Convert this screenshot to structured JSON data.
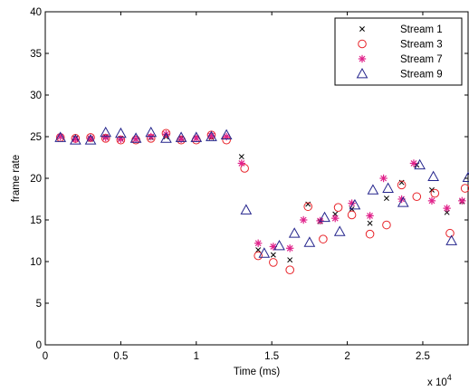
{
  "chart_data": {
    "type": "scatter",
    "title": "",
    "xlabel": "Time (ms)",
    "ylabel": "frame rate",
    "x_multiplier_label": "x 10",
    "x_multiplier_exponent": "4",
    "xlim": [
      0,
      28000
    ],
    "ylim": [
      0,
      40
    ],
    "xticks": [
      0,
      5000,
      10000,
      15000,
      20000,
      25000
    ],
    "xtick_labels": [
      "0",
      "0.5",
      "1",
      "1.5",
      "2",
      "2.5"
    ],
    "yticks": [
      0,
      5,
      10,
      15,
      20,
      25,
      30,
      35,
      40
    ],
    "ytick_labels": [
      "0",
      "5",
      "10",
      "15",
      "20",
      "25",
      "30",
      "35",
      "40"
    ],
    "grid": false,
    "legend_position": "top-right",
    "series": [
      {
        "name": "Stream 1",
        "marker": "x",
        "color": "#000000",
        "points": [
          [
            1000,
            25.0
          ],
          [
            2000,
            24.8
          ],
          [
            3000,
            24.7
          ],
          [
            4000,
            25.0
          ],
          [
            5000,
            24.8
          ],
          [
            6000,
            24.7
          ],
          [
            7000,
            24.9
          ],
          [
            8000,
            25.0
          ],
          [
            9000,
            24.8
          ],
          [
            10000,
            24.8
          ],
          [
            11000,
            24.9
          ],
          [
            12000,
            25.0
          ],
          [
            13000,
            22.6
          ],
          [
            14100,
            11.4
          ],
          [
            15100,
            10.8
          ],
          [
            16200,
            10.2
          ],
          [
            17400,
            16.9
          ],
          [
            18200,
            14.8
          ],
          [
            19200,
            15.7
          ],
          [
            20300,
            16.3
          ],
          [
            21500,
            14.6
          ],
          [
            22600,
            17.6
          ],
          [
            23600,
            19.5
          ],
          [
            24600,
            21.6
          ],
          [
            25600,
            18.6
          ],
          [
            26600,
            15.9
          ],
          [
            27600,
            17.2
          ]
        ]
      },
      {
        "name": "Stream 3",
        "marker": "circle",
        "color": "#e8252b",
        "points": [
          [
            1000,
            24.9
          ],
          [
            2000,
            24.8
          ],
          [
            3000,
            24.9
          ],
          [
            4000,
            24.8
          ],
          [
            5000,
            24.6
          ],
          [
            6000,
            24.6
          ],
          [
            7000,
            24.8
          ],
          [
            8000,
            25.4
          ],
          [
            9000,
            24.6
          ],
          [
            10000,
            24.6
          ],
          [
            11000,
            25.2
          ],
          [
            12000,
            24.6
          ],
          [
            13200,
            21.2
          ],
          [
            14100,
            10.7
          ],
          [
            15100,
            9.9
          ],
          [
            16200,
            9.0
          ],
          [
            17400,
            16.6
          ],
          [
            18400,
            12.7
          ],
          [
            19400,
            16.5
          ],
          [
            20300,
            15.6
          ],
          [
            21500,
            13.3
          ],
          [
            22600,
            14.4
          ],
          [
            23600,
            19.2
          ],
          [
            24600,
            17.8
          ],
          [
            25800,
            18.2
          ],
          [
            26800,
            13.4
          ],
          [
            27800,
            18.8
          ]
        ]
      },
      {
        "name": "Stream 7",
        "marker": "star",
        "color": "#e0218a",
        "points": [
          [
            1000,
            25.0
          ],
          [
            2000,
            24.7
          ],
          [
            3000,
            24.8
          ],
          [
            4000,
            24.9
          ],
          [
            5000,
            24.7
          ],
          [
            6000,
            24.7
          ],
          [
            7000,
            25.0
          ],
          [
            8000,
            25.3
          ],
          [
            9000,
            24.7
          ],
          [
            10000,
            24.8
          ],
          [
            11000,
            25.1
          ],
          [
            12000,
            25.0
          ],
          [
            13000,
            21.8
          ],
          [
            14100,
            12.2
          ],
          [
            15100,
            11.8
          ],
          [
            16200,
            11.6
          ],
          [
            17100,
            15.0
          ],
          [
            18200,
            14.9
          ],
          [
            19200,
            15.2
          ],
          [
            20300,
            17.0
          ],
          [
            21500,
            15.5
          ],
          [
            22400,
            20.0
          ],
          [
            23600,
            17.5
          ],
          [
            24400,
            21.8
          ],
          [
            25600,
            17.3
          ],
          [
            26600,
            16.4
          ],
          [
            27600,
            17.3
          ]
        ]
      },
      {
        "name": "Stream 9",
        "marker": "triangle",
        "color": "#24248c",
        "points": [
          [
            1000,
            24.9
          ],
          [
            2000,
            24.6
          ],
          [
            3000,
            24.6
          ],
          [
            4000,
            25.5
          ],
          [
            5000,
            25.4
          ],
          [
            6000,
            24.8
          ],
          [
            7000,
            25.5
          ],
          [
            8000,
            24.8
          ],
          [
            9000,
            24.9
          ],
          [
            10000,
            24.9
          ],
          [
            11000,
            25.0
          ],
          [
            12000,
            25.2
          ],
          [
            13300,
            16.2
          ],
          [
            14500,
            11.0
          ],
          [
            15500,
            11.9
          ],
          [
            16500,
            13.4
          ],
          [
            17500,
            12.3
          ],
          [
            18500,
            15.3
          ],
          [
            19500,
            13.6
          ],
          [
            20500,
            16.8
          ],
          [
            21700,
            18.6
          ],
          [
            22700,
            18.8
          ],
          [
            23700,
            17.1
          ],
          [
            24800,
            21.6
          ],
          [
            25700,
            20.2
          ],
          [
            26900,
            12.5
          ],
          [
            28000,
            20.1
          ]
        ]
      }
    ]
  }
}
